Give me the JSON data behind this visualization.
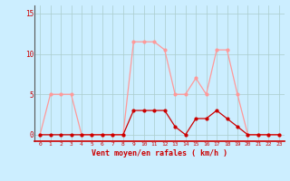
{
  "x": [
    0,
    1,
    2,
    3,
    4,
    5,
    6,
    7,
    8,
    9,
    10,
    11,
    12,
    13,
    14,
    15,
    16,
    17,
    18,
    19,
    20,
    21,
    22,
    23
  ],
  "wind_avg": [
    0,
    0,
    0,
    0,
    0,
    0,
    0,
    0,
    0,
    3,
    3,
    3,
    3,
    1,
    0,
    2,
    2,
    3,
    2,
    1,
    0,
    0,
    0,
    0
  ],
  "wind_gust": [
    0,
    5,
    5,
    5,
    0,
    0,
    0,
    0,
    0,
    11.5,
    11.5,
    11.5,
    10.5,
    5,
    5,
    7,
    5,
    10.5,
    10.5,
    5,
    0,
    0,
    0,
    0
  ],
  "color_avg": "#cc0000",
  "color_gust": "#ff9999",
  "bg_color": "#cceeff",
  "grid_color": "#aacccc",
  "xlabel": "Vent moyen/en rafales ( km/h )",
  "yticks": [
    0,
    5,
    10,
    15
  ],
  "xlim": [
    -0.5,
    23.5
  ],
  "ylim": [
    -0.8,
    16
  ],
  "xlabel_color": "#cc0000",
  "tick_color": "#cc0000",
  "marker_size": 2.0,
  "line_width": 0.9
}
